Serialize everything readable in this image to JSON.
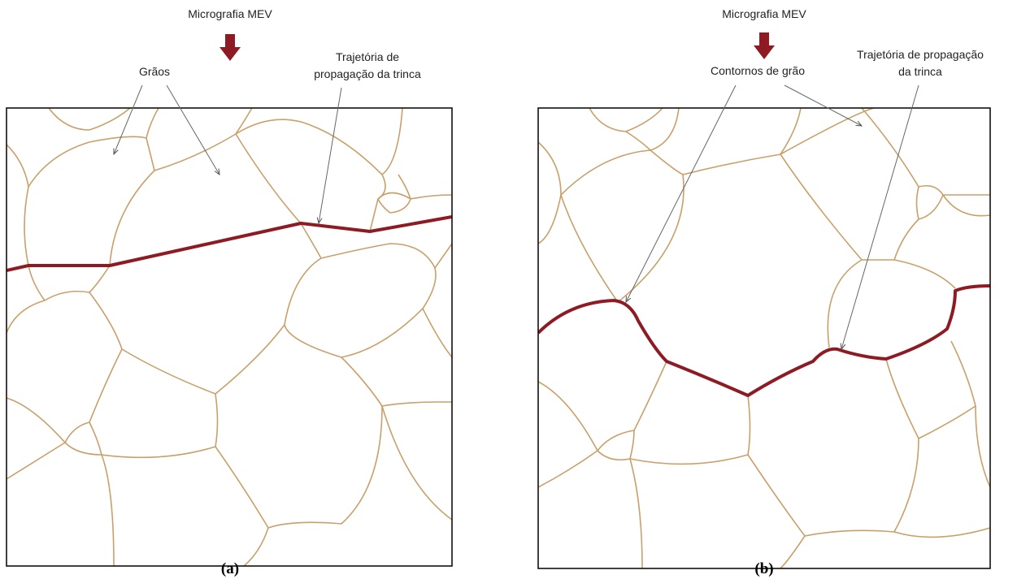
{
  "panels": [
    {
      "title": "Micrografia MEV",
      "labels": [
        {
          "lines": [
            "Grãos"
          ]
        },
        {
          "lines": [
            "Trajetória de",
            "propagação da trinca"
          ]
        }
      ],
      "caption": "(a)"
    },
    {
      "title": "Micrografia MEV",
      "labels": [
        {
          "lines": [
            "Contornos de grão"
          ]
        },
        {
          "lines": [
            "Trajetória de propagação",
            "da trinca"
          ]
        }
      ],
      "caption": "(b)"
    }
  ]
}
